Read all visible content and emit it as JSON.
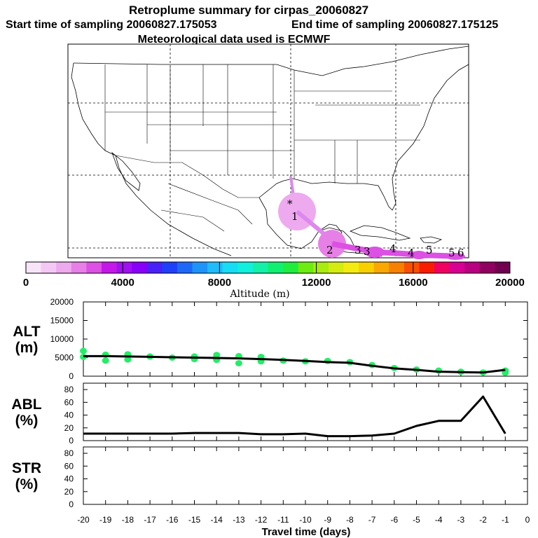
{
  "header": {
    "title": "Retroplume summary for cirpas_20060827",
    "start_label": "Start time of sampling 20060827.175053",
    "end_label": "End time of sampling 20060827.175125",
    "met_label": "Meteorological data used is ECMWF"
  },
  "colorbar": {
    "label": "Altitude (m)",
    "ticks": [
      "0",
      "4000",
      "8000",
      "12000",
      "16000",
      "20000"
    ],
    "range": [
      0,
      20000
    ],
    "colors": [
      "#f8e4f8",
      "#f4c8f4",
      "#eeaaee",
      "#e680e6",
      "#dc50e4",
      "#c418e8",
      "#a010f0",
      "#8800f8",
      "#4a20f8",
      "#1e40f8",
      "#1e68f8",
      "#1e94f8",
      "#1ebcf8",
      "#16dcf4",
      "#10f0dc",
      "#14f0a8",
      "#10f070",
      "#20ec40",
      "#6cec10",
      "#a8ec10",
      "#d4ec10",
      "#f4ec10",
      "#f8d000",
      "#f8a800",
      "#f88000",
      "#f85000",
      "#f81c00",
      "#f00060",
      "#d80090",
      "#b80080",
      "#900060",
      "#700050"
    ]
  },
  "map": {
    "trajectory_labels": [
      "1",
      "2",
      "3",
      "3",
      "4",
      "4",
      "5",
      "5",
      "6"
    ],
    "release_marker": "*"
  },
  "chart_data": [
    {
      "type": "line",
      "id": "alt",
      "title": "ALT",
      "ylabel": "ALT (m)",
      "ylabel_line1": "ALT",
      "ylabel_line2": "(m)",
      "xlabel": "Travel time (days)",
      "x": [
        -20,
        -19,
        -18,
        -17,
        -16,
        -15,
        -14,
        -13,
        -12,
        -11,
        -10,
        -9,
        -8,
        -7,
        -6,
        -5,
        -4,
        -3,
        -2,
        -1
      ],
      "values": [
        5400,
        5400,
        5300,
        5200,
        5100,
        5000,
        4900,
        4800,
        4600,
        4400,
        4100,
        3800,
        3600,
        2800,
        2100,
        1700,
        1200,
        1100,
        1000,
        1700
      ],
      "scatter_color": "#22ee66",
      "scatter": [
        [
          -20,
          6800
        ],
        [
          -20,
          5200
        ],
        [
          -19,
          5800
        ],
        [
          -19,
          4200
        ],
        [
          -18,
          5900
        ],
        [
          -18,
          4500
        ],
        [
          -17,
          5300
        ],
        [
          -16,
          5000
        ],
        [
          -15,
          5300
        ],
        [
          -15,
          4600
        ],
        [
          -14,
          5700
        ],
        [
          -14,
          4400
        ],
        [
          -13,
          5400
        ],
        [
          -13,
          3500
        ],
        [
          -12,
          5200
        ],
        [
          -12,
          4000
        ],
        [
          -11,
          4200
        ],
        [
          -10,
          4000
        ],
        [
          -9,
          4100
        ],
        [
          -8,
          3800
        ],
        [
          -7,
          3000
        ],
        [
          -6,
          2200
        ],
        [
          -5,
          1800
        ],
        [
          -4,
          1500
        ],
        [
          -3,
          1200
        ],
        [
          -2,
          1000
        ],
        [
          -1,
          1500
        ],
        [
          -1,
          900
        ]
      ],
      "ylim": [
        0,
        20000
      ],
      "yticks": [
        "0",
        "5000",
        "10000",
        "15000",
        "20000"
      ]
    },
    {
      "type": "line",
      "id": "abl",
      "ylabel": "ABL (%)",
      "ylabel_line1": "ABL",
      "ylabel_line2": "(%)",
      "x": [
        -20,
        -19,
        -18,
        -17,
        -16,
        -15,
        -14,
        -13,
        -12,
        -11,
        -10,
        -9,
        -8,
        -7,
        -6,
        -5,
        -4,
        -3,
        -2,
        -1
      ],
      "values": [
        11,
        11,
        11,
        11,
        11,
        12,
        12,
        12,
        10,
        10,
        11,
        7,
        7,
        8,
        11,
        23,
        31,
        31,
        69,
        11
      ],
      "ylim": [
        0,
        90
      ],
      "yticks": [
        "0",
        "20",
        "40",
        "60",
        "80"
      ]
    },
    {
      "type": "line",
      "id": "str",
      "ylabel": "STR (%)",
      "ylabel_line1": "STR",
      "ylabel_line2": "(%)",
      "x": [],
      "values": [],
      "ylim": [
        0,
        90
      ],
      "yticks": [
        "0",
        "20",
        "40",
        "60",
        "80"
      ]
    }
  ],
  "xaxis": {
    "label": "Travel time (days)",
    "range": [
      -20,
      0
    ],
    "ticks": [
      "-20",
      "-19",
      "-18",
      "-17",
      "-16",
      "-15",
      "-14",
      "-13",
      "-12",
      "-11",
      "-10",
      "-9",
      "-8",
      "-7",
      "-6",
      "-5",
      "-4",
      "-3",
      "-2",
      "-1",
      "0"
    ]
  }
}
